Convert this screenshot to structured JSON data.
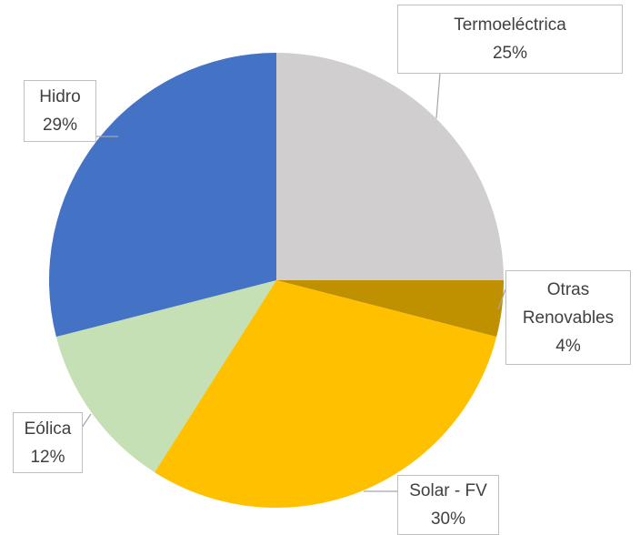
{
  "chart_data": {
    "type": "pie",
    "categories": [
      "Termoeléctrica",
      "Otras Renovables",
      "Solar - FV",
      "Eólica",
      "Hidro"
    ],
    "values": [
      25,
      4,
      30,
      12,
      29
    ],
    "value_labels": [
      "25%",
      "4%",
      "30%",
      "12%",
      "29%"
    ],
    "colors": [
      "#d0cece",
      "#bf9000",
      "#ffc000",
      "#c5e0b4",
      "#4472c4"
    ]
  }
}
